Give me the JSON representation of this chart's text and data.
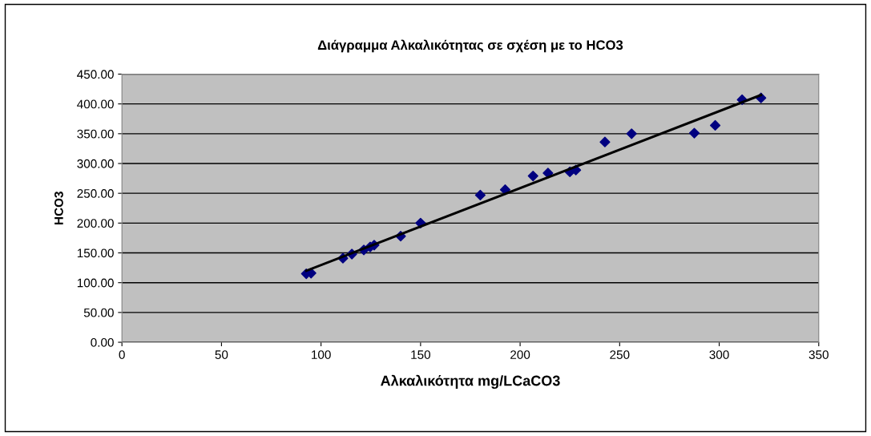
{
  "chart_data": {
    "type": "scatter",
    "title": "Διάγραμμα Αλκαλικότητας σε σχέση με το HCO3",
    "xlabel": "Αλκαλικότητα mg/LCaCO3",
    "ylabel": "HCO3",
    "xlim": [
      0,
      350
    ],
    "xticks": [
      0,
      50,
      100,
      150,
      200,
      250,
      300,
      350
    ],
    "ylim": [
      0,
      450
    ],
    "yticks": [
      {
        "value": 0,
        "label": "0.00"
      },
      {
        "value": 50,
        "label": "50.00"
      },
      {
        "value": 100,
        "label": "100.00"
      },
      {
        "value": 150,
        "label": "150.00"
      },
      {
        "value": 200,
        "label": "200.00"
      },
      {
        "value": 250,
        "label": "250.00"
      },
      {
        "value": 300,
        "label": "300.00"
      },
      {
        "value": 350,
        "label": "350.00"
      },
      {
        "value": 400,
        "label": "400.00"
      },
      {
        "value": 450,
        "label": "450.00"
      }
    ],
    "grid": "y",
    "marker": "diamond",
    "series": [
      {
        "color": "#000080",
        "x": [
          92.6,
          95,
          111,
          115.5,
          121.5,
          124.7,
          126.7,
          140,
          150,
          180,
          192.5,
          206.5,
          214,
          225,
          228,
          242.6,
          256,
          287.5,
          298,
          311.5,
          321
        ],
        "values": [
          115,
          116,
          141,
          148,
          155,
          160,
          163,
          178,
          200,
          247,
          256,
          279,
          284,
          286,
          289,
          336,
          350,
          351,
          364,
          407,
          410
        ]
      },
      {
        "type": "line",
        "color": "#000000",
        "marker": "none",
        "x": [
          92.6,
          321
        ],
        "values": [
          120,
          415
        ]
      }
    ]
  }
}
